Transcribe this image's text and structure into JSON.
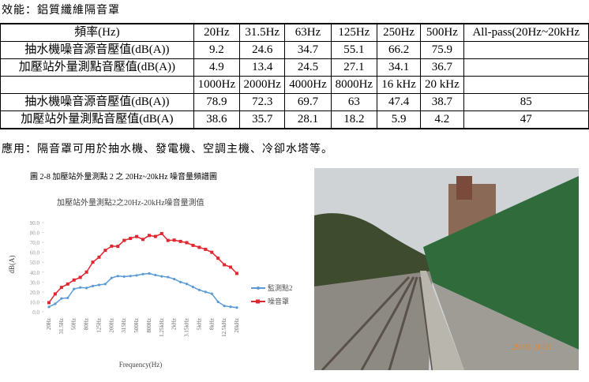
{
  "heading": "效能：鋁質纖維隔音罩",
  "table": {
    "label_header": "頻率(Hz)",
    "all_pass_header": "All-pass(20Hz~20kHz",
    "blocks": [
      {
        "bands": [
          "20Hz",
          "31.5Hz",
          "63Hz",
          "125Hz",
          "250Hz",
          "500Hz"
        ],
        "rows": [
          {
            "label": "抽水機噪音源音壓值(dB(A))",
            "values": [
              9.2,
              24.6,
              34.7,
              55.1,
              66.2,
              75.9
            ]
          },
          {
            "label": "加壓站外量測點音壓值(dB(A))",
            "values": [
              4.9,
              13.4,
              24.5,
              27.1,
              34.1,
              36.7
            ]
          }
        ]
      },
      {
        "bands": [
          "1000Hz",
          "2000Hz",
          "4000Hz",
          "8000Hz",
          "16 kHz",
          "20 kHz"
        ],
        "rows": [
          {
            "label": "抽水機噪音源音壓值(dB(A))",
            "values": [
              78.9,
              72.3,
              69.7,
              63,
              47.4,
              38.7
            ],
            "all_pass": 85
          },
          {
            "label": "加壓站外量測點音壓值(dB(A)",
            "values": [
              38.6,
              35.7,
              28.1,
              18.2,
              5.9,
              4.2
            ],
            "all_pass": 47
          }
        ]
      }
    ]
  },
  "application": "應用：隔音罩可用於抽水機、發電機、空調主機、冷卻水塔等。",
  "figure": {
    "caption": "圖 2-8 加壓站外量測點 2 之 20Hz~20kHz 噪音量頻譜圖"
  },
  "chart_data": {
    "type": "line",
    "title": "加壓站外量測點2之20Hz-20kHz噪音量測值",
    "ylabel": "dB(A)",
    "xlabel": "Frequency(Hz)",
    "categories": [
      "20Hz",
      null,
      "31.5Hz",
      null,
      "50Hz",
      null,
      "80Hz",
      null,
      "125Hz",
      null,
      "200Hz",
      null,
      "315Hz",
      null,
      "500Hz",
      null,
      "800Hz",
      null,
      "1.25kHz",
      null,
      "2kHz",
      null,
      "3.15kHz",
      null,
      "5kHz",
      null,
      "8kHz",
      null,
      "12.5kHz",
      null,
      "20kHz"
    ],
    "series": [
      {
        "name": "監測點2",
        "color": "#5b9bd5",
        "marker": "circle",
        "values": [
          4.9,
          8,
          13.4,
          14,
          23,
          24.5,
          24,
          26,
          27.1,
          28,
          34.1,
          36,
          35.5,
          36,
          36.7,
          38,
          38.6,
          37,
          35.7,
          35,
          33,
          30,
          28.1,
          25,
          22,
          20,
          18.2,
          10,
          5.9,
          5,
          4.2
        ]
      },
      {
        "name": "噪音罩",
        "color": "#e0262f",
        "marker": "square",
        "values": [
          9.2,
          18,
          24.6,
          28,
          32,
          34.7,
          40,
          50,
          55.1,
          62,
          66.2,
          66,
          72,
          74,
          75.9,
          73,
          77,
          76,
          78.9,
          72,
          72.3,
          71,
          69.7,
          67,
          65,
          63,
          60,
          54,
          47.4,
          45,
          38.7
        ]
      }
    ],
    "ylim": [
      0,
      90
    ],
    "yticks": [
      {
        "value": 0,
        "label": "0.0"
      },
      {
        "value": 10,
        "label": "10.0"
      },
      {
        "value": 20,
        "label": "20.0"
      },
      {
        "value": 30,
        "label": "30.0"
      },
      {
        "value": 40,
        "label": "40.0"
      },
      {
        "value": 50,
        "label": "50.0"
      },
      {
        "value": 60,
        "label": "60.0"
      },
      {
        "value": 70,
        "label": "70.0"
      },
      {
        "value": 80,
        "label": "80.0"
      },
      {
        "value": 90,
        "label": "90.0"
      }
    ],
    "legend": "right"
  },
  "photo": {
    "timestamp": "29 03 2013"
  }
}
